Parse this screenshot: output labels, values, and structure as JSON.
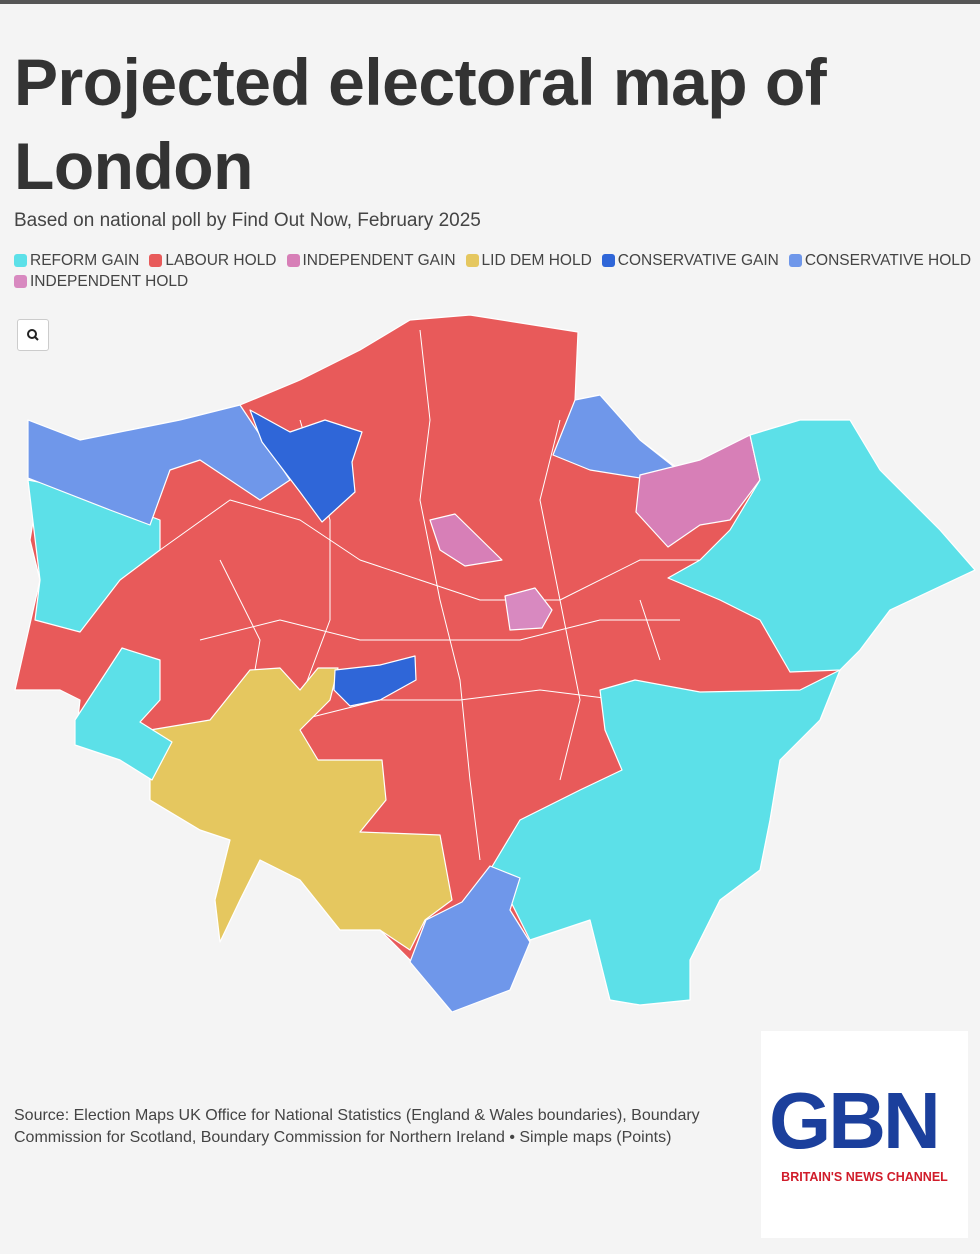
{
  "header": {
    "title": "Projected electoral map of London",
    "subtitle": "Based on national poll by Find Out Now, February 2025"
  },
  "legend": [
    {
      "label": "REFORM GAIN",
      "color": "#5ce0e8"
    },
    {
      "label": "LABOUR HOLD",
      "color": "#e85a5a"
    },
    {
      "label": "INDEPENDENT GAIN",
      "color": "#d77fb7"
    },
    {
      "label": "LID DEM HOLD",
      "color": "#e5c75f"
    },
    {
      "label": "CONSERVATIVE GAIN",
      "color": "#2f66d8"
    },
    {
      "label": "CONSERVATIVE HOLD",
      "color": "#6f97ea"
    },
    {
      "label": "INDEPENDENT HOLD",
      "color": "#d889c0"
    }
  ],
  "footer": {
    "source": "Source: Election Maps UK Office for National Statistics (England & Wales boundaries), Boundary Commission for Scotland, Boundary Commission for Northern Ireland • Simple maps (Points)"
  },
  "logo": {
    "name": "GBN",
    "tagline": "BRITAIN'S NEWS CHANNEL"
  }
}
